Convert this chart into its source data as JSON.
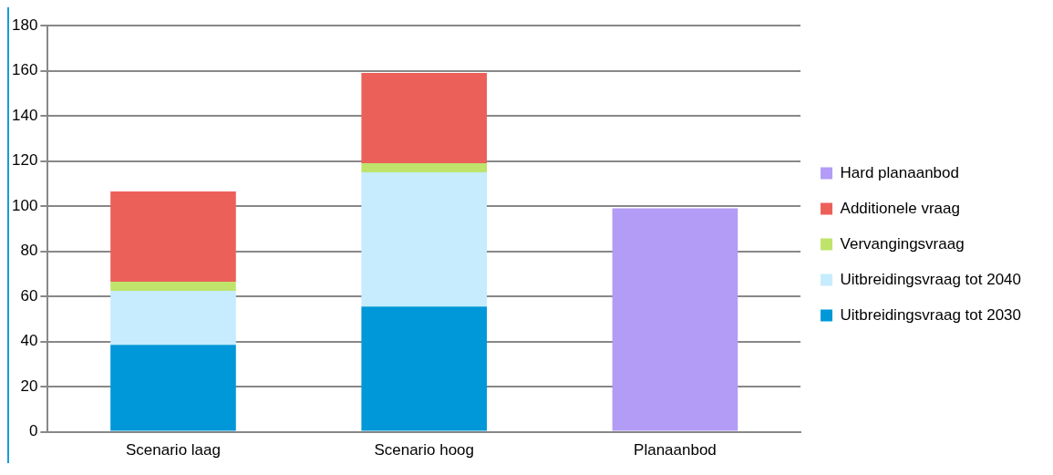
{
  "chart_data": {
    "type": "bar",
    "stacked": true,
    "categories": [
      "Scenario laag",
      "Scenario hoog",
      "Planaanbod"
    ],
    "series": [
      {
        "name": "Uitbreidingsvraag tot 2030",
        "color": "#0098d8",
        "values": [
          38.5,
          55.5,
          null
        ]
      },
      {
        "name": "Uitbreidingsvraag tot 2040",
        "color": "#c6ecfd",
        "values": [
          24,
          59.5,
          null
        ]
      },
      {
        "name": "Vervangingsvraag",
        "color": "#bfe36b",
        "values": [
          4,
          4,
          null
        ]
      },
      {
        "name": "Additionele vraag",
        "color": "#ec605a",
        "values": [
          40,
          40,
          null
        ]
      },
      {
        "name": "Hard planaanbod",
        "color": "#b29cf5",
        "values": [
          null,
          null,
          99
        ]
      }
    ],
    "ylim": [
      0,
      180
    ],
    "yticks": [
      0,
      20,
      40,
      60,
      80,
      100,
      120,
      140,
      160,
      180
    ],
    "grid": "y",
    "legend": "right"
  }
}
